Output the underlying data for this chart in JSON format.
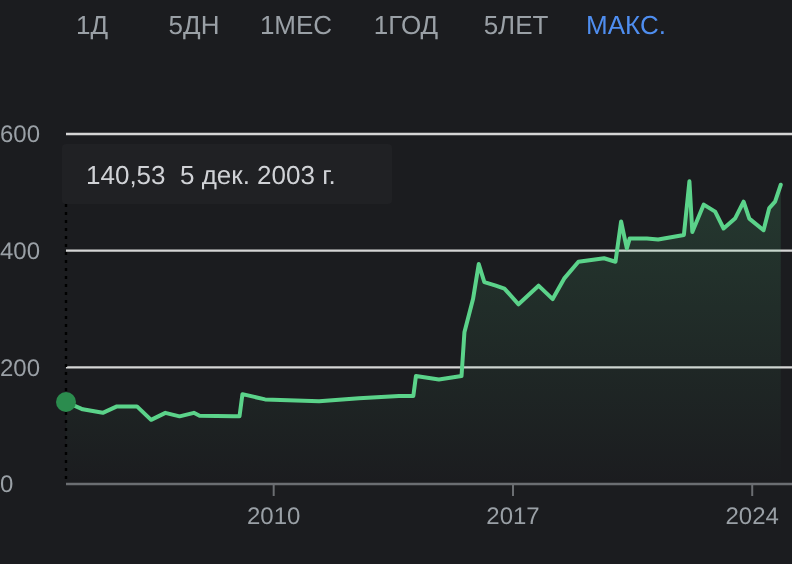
{
  "chart_data": {
    "type": "area",
    "x": [
      "2003-12-05",
      "2004-06",
      "2005-01",
      "2005-06",
      "2006-01",
      "2006-06",
      "2006-11",
      "2007-04",
      "2007-09",
      "2007-11",
      "2008-11",
      "2009-01",
      "2009-02",
      "2009-10",
      "2011-05",
      "2012-07",
      "2013-09",
      "2014-02",
      "2014-03",
      "2014-11",
      "2015-07",
      "2015-08",
      "2015-11",
      "2016-01",
      "2016-03",
      "2016-07",
      "2016-10",
      "2017-03",
      "2017-10",
      "2018-03",
      "2018-07",
      "2018-12",
      "2019-09",
      "2020-01",
      "2020-03",
      "2020-05",
      "2020-06",
      "2020-12",
      "2021-04",
      "2022-01",
      "2022-03",
      "2022-04",
      "2022-08",
      "2022-12",
      "2023-03",
      "2023-07",
      "2023-10",
      "2023-12",
      "2024-05",
      "2024-07",
      "2024-09",
      "2024-11"
    ],
    "series": [
      {
        "color": "#5bd38a",
        "values": [
          140.53,
          128,
          122,
          133,
          133,
          110,
          122,
          116,
          122,
          117,
          116,
          116,
          154,
          145,
          142,
          147,
          151,
          151,
          185,
          179,
          185,
          260,
          317,
          377,
          346,
          340,
          335,
          308,
          340,
          317,
          352,
          381,
          387,
          381,
          450,
          404,
          421,
          421,
          419,
          427,
          519,
          432,
          479,
          467,
          438,
          455,
          484,
          455,
          435,
          473,
          484,
          513
        ]
      }
    ],
    "xlim": [
      "2003-12-05",
      "2025-03"
    ],
    "xticks": [
      {
        "value": "2010",
        "label": "2010"
      },
      {
        "value": "2017",
        "label": "2017"
      },
      {
        "value": "2024",
        "label": "2024"
      }
    ],
    "ylim": [
      0,
      600
    ],
    "yticks": [
      0,
      200,
      400,
      600
    ],
    "grid": "y",
    "marker": "none",
    "line_style": "solid",
    "annotations": [
      "1Д",
      "5ДН",
      "1МЕС",
      "1ГОД",
      "5ЛЕТ",
      "МАКС.",
      "140,53  5 дек. 2003 г."
    ]
  }
}
